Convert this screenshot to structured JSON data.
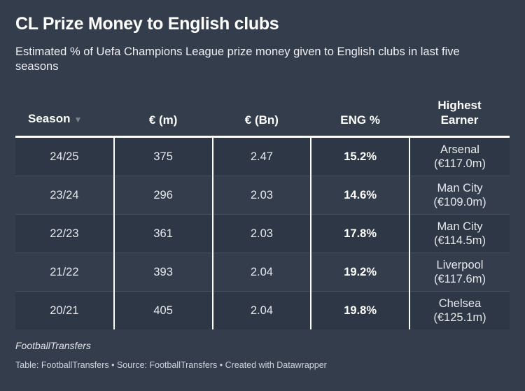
{
  "title": "CL Prize Money to English clubs",
  "subtitle": "Estimated % of Uefa Champions League prize money given to English clubs in last five seasons",
  "table": {
    "headers": [
      "Season",
      "€ (m)",
      "€ (Bn)",
      "ENG %",
      "Highest Earner"
    ],
    "sort_icon": "triangle-down-icon",
    "rows": [
      [
        "24/25",
        "375",
        "2.47",
        "15.2%",
        "Arsenal",
        "(€117.0m)"
      ],
      [
        "23/24",
        "296",
        "2.03",
        "14.6%",
        "Man City",
        "(€109.0m)"
      ],
      [
        "22/23",
        "361",
        "2.03",
        "17.8%",
        "Man City",
        "(€114.5m)"
      ],
      [
        "21/22",
        "393",
        "2.04",
        "19.2%",
        "Liverpool",
        "(€117.6m)"
      ],
      [
        "20/21",
        "405",
        "2.04",
        "19.8%",
        "Chelsea",
        "(€125.1m)"
      ]
    ]
  },
  "notes": "FootballTransfers",
  "byline": "Table: FootballTransfers • Source: FootballTransfers • Created with Datawrapper",
  "colors": {
    "background": "#343d4c",
    "stripe": "#2e3745",
    "text": "#ffffff"
  }
}
